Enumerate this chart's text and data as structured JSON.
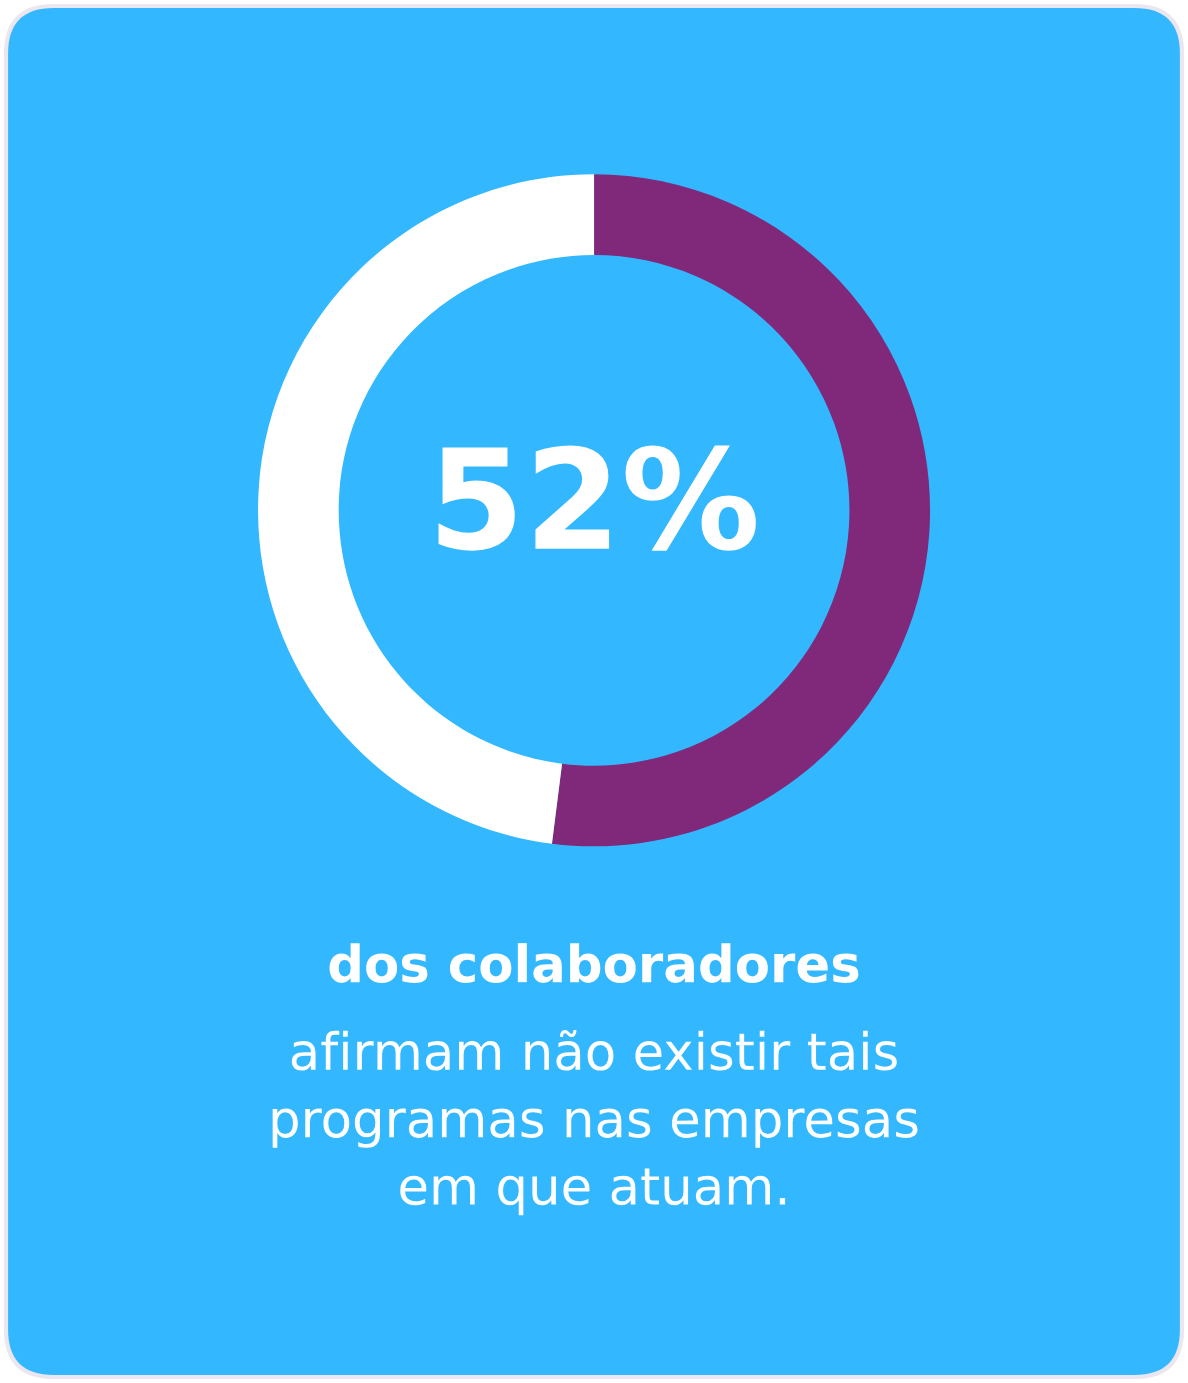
{
  "chart_data": {
    "type": "donut",
    "title": "dos colaboradores",
    "subtitle": "afirmam não existir tais\nprogramas nas empresas\nem que atuam.",
    "categories": [
      null,
      null
    ],
    "values": [
      52,
      48
    ],
    "colors": [
      "#80297b",
      "#ffffff"
    ],
    "value_labels": [
      "52%",
      null
    ]
  }
}
